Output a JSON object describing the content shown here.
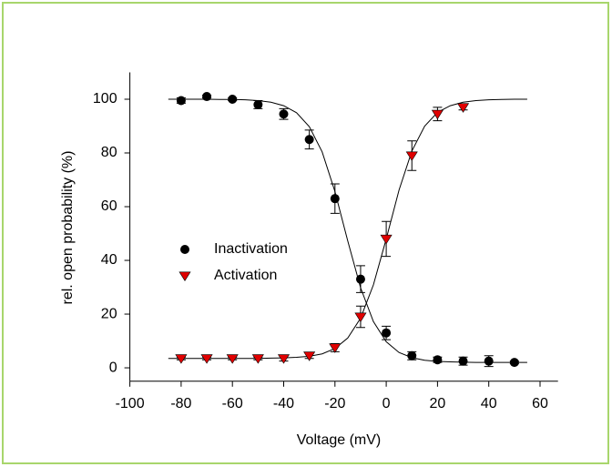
{
  "chart_data": {
    "type": "scatter",
    "xlabel": "Voltage (mV)",
    "ylabel": "rel. open probability (%)",
    "xlim": [
      -100,
      67
    ],
    "xticks": [
      -100,
      -80,
      -60,
      -40,
      -20,
      0,
      20,
      40,
      60
    ],
    "ylim": [
      -5,
      110
    ],
    "yticks": [
      0,
      20,
      40,
      60,
      80,
      100
    ],
    "series": [
      {
        "name": "Inactivation",
        "color": "#000000",
        "marker": "circle",
        "x": [
          -80,
          -70,
          -60,
          -50,
          -40,
          -30,
          -20,
          -10,
          0,
          10,
          20,
          30,
          40,
          50
        ],
        "values": [
          99.5,
          101,
          100,
          98,
          94.5,
          85,
          63,
          33,
          13,
          4.5,
          3,
          2.5,
          2.5,
          2
        ],
        "errors": [
          1,
          0.5,
          0.5,
          1.5,
          2,
          3.5,
          5.5,
          5,
          2.5,
          1.5,
          1,
          1.5,
          2,
          0.5
        ]
      },
      {
        "name": "Activation",
        "color": "#e00000",
        "marker": "triangle-down",
        "x": [
          -80,
          -70,
          -60,
          -50,
          -40,
          -30,
          -20,
          -10,
          0,
          10,
          20,
          30
        ],
        "values": [
          3.5,
          3.5,
          3.5,
          3.5,
          3.5,
          4.5,
          7.5,
          19,
          48,
          79,
          94.5,
          97
        ],
        "errors": [
          0.5,
          0.5,
          0.5,
          0.5,
          1,
          1,
          1.5,
          4,
          6.5,
          5.5,
          2.5,
          1
        ]
      }
    ],
    "fit_curves": [
      {
        "color": "#000000",
        "x": [
          -85,
          -80,
          -75,
          -70,
          -65,
          -60,
          -55,
          -50,
          -45,
          -40,
          -35,
          -30,
          -25,
          -20,
          -15,
          -10,
          -5,
          0,
          5,
          10,
          15,
          20,
          25,
          30,
          35,
          40,
          45,
          50,
          55
        ],
        "values": [
          100,
          100,
          100,
          100,
          99.9,
          99.9,
          99.8,
          99.5,
          98.9,
          97.6,
          95.0,
          89.8,
          80.4,
          65.6,
          47.2,
          29.8,
          17.2,
          9.7,
          5.7,
          3.8,
          2.8,
          2.4,
          2.2,
          2.1,
          2.0,
          2.0,
          2.0,
          2.0,
          2.0
        ]
      },
      {
        "color": "#000000",
        "x": [
          -85,
          -80,
          -75,
          -70,
          -65,
          -60,
          -55,
          -50,
          -45,
          -40,
          -35,
          -30,
          -25,
          -20,
          -15,
          -10,
          -5,
          0,
          5,
          10,
          15,
          20,
          25,
          30,
          35,
          40,
          45,
          50,
          55
        ],
        "values": [
          3.5,
          3.5,
          3.5,
          3.5,
          3.5,
          3.5,
          3.5,
          3.5,
          3.6,
          3.7,
          3.9,
          4.3,
          5.2,
          7.2,
          11.1,
          18.5,
          30.9,
          48,
          66.2,
          80.7,
          90.0,
          95.1,
          97.6,
          98.9,
          99.5,
          99.8,
          99.9,
          100,
          100
        ]
      }
    ]
  }
}
